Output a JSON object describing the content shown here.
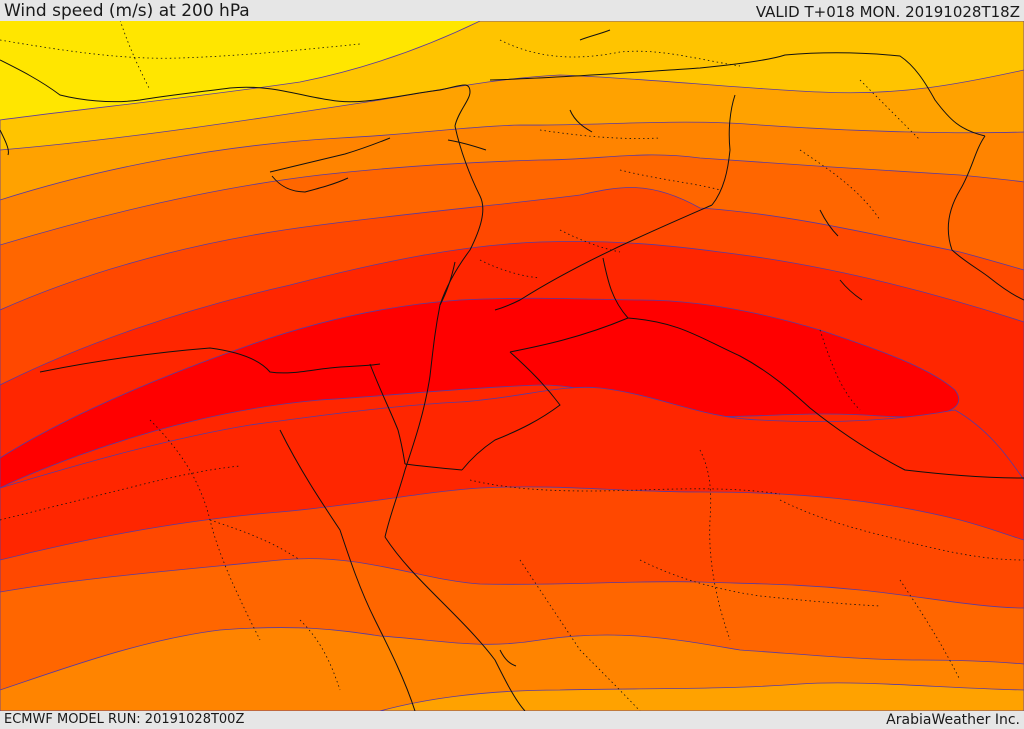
{
  "header": {
    "title": "Wind speed (m/s) at 200 hPa",
    "valid": "VALID T+018 MON. 20191028T18Z"
  },
  "footer": {
    "model_run": "ECMWF MODEL RUN: 20191028T00Z",
    "credit": "ArabiaWeather Inc."
  },
  "colors": {
    "band_1": "#ffe600",
    "band_2": "#ffc400",
    "band_3": "#ffa200",
    "band_4": "#ff8400",
    "band_5": "#ff6600",
    "band_6": "#ff4800",
    "band_7": "#ff2600",
    "band_8": "#ff0000",
    "contour_line": "#5a3aa0",
    "border_line": "#111111"
  }
}
